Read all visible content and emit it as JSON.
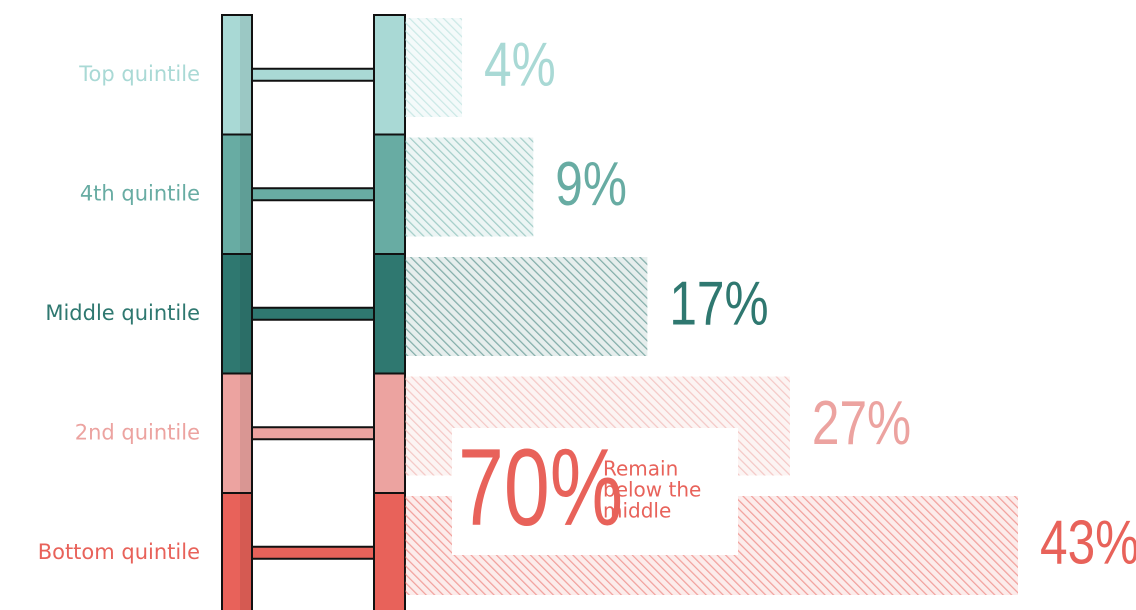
{
  "chart_data": {
    "type": "bar",
    "categories": [
      "Top quintile",
      "4th quintile",
      "Middle quintile",
      "2nd quintile",
      "Bottom quintile"
    ],
    "values": [
      4,
      9,
      17,
      27,
      43
    ],
    "value_labels": [
      "4%",
      "9%",
      "17%",
      "27%",
      "43%"
    ],
    "colors": [
      "#a9d9d5",
      "#68aca3",
      "#2f7870",
      "#eca3a0",
      "#e8625a"
    ],
    "annotation": {
      "value_label": "70%",
      "lines": [
        "Remain",
        "below the",
        "middle"
      ],
      "color": "#e8625a"
    }
  }
}
